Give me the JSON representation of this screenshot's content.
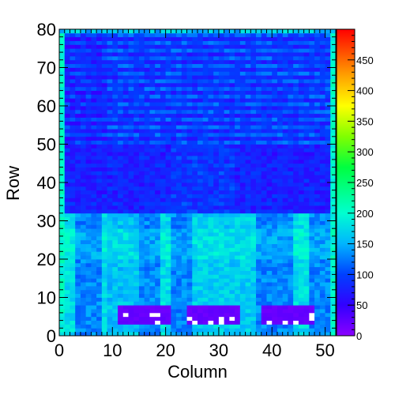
{
  "chart_data": {
    "type": "heatmap",
    "title": "",
    "xlabel": "Column",
    "ylabel": "Row",
    "xlim": [
      0,
      52
    ],
    "ylim": [
      0,
      80
    ],
    "x_ticks": [
      "0",
      "10",
      "20",
      "30",
      "40",
      "50"
    ],
    "x_tick_values": [
      0,
      10,
      20,
      30,
      40,
      50
    ],
    "y_ticks": [
      "0",
      "10",
      "20",
      "30",
      "40",
      "50",
      "60",
      "70",
      "80"
    ],
    "y_tick_values": [
      0,
      10,
      20,
      30,
      40,
      50,
      60,
      70,
      80
    ],
    "colorbar": {
      "range": [
        0,
        500
      ],
      "ticks": [
        "0",
        "50",
        "100",
        "150",
        "200",
        "250",
        "300",
        "350",
        "400",
        "450"
      ],
      "tick_values": [
        0,
        50,
        100,
        150,
        200,
        250,
        300,
        350,
        400,
        450
      ],
      "palette": "rainbow (violet-blue-cyan-green-yellow-red)"
    },
    "grid": false,
    "columns": 52,
    "rows": 80,
    "regions": [
      {
        "name": "bottom rows 0-32, bright bands",
        "value_approx": 170
      },
      {
        "name": "rows 33-50 (darker band)",
        "value_approx": 70
      },
      {
        "name": "rows 50-80 (upper stripes)",
        "value_approx": 95
      },
      {
        "name": "dead-channel blocks at rows 3-7",
        "value_approx": 15
      },
      {
        "name": "edge columns 0 and 51",
        "value_approx": 200
      }
    ]
  }
}
